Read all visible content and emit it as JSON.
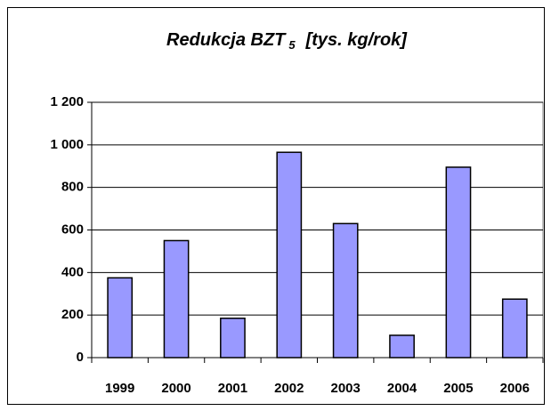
{
  "chart_data": {
    "type": "bar",
    "title": "Redukcja BZT",
    "title_subscript": "5",
    "title_suffix": "[tys. kg/rok]",
    "categories": [
      "1999",
      "2000",
      "2001",
      "2002",
      "2003",
      "2004",
      "2005",
      "2006"
    ],
    "values": [
      375,
      550,
      185,
      965,
      630,
      105,
      895,
      275
    ],
    "color": "#9999ff",
    "ylim": [
      0,
      1200
    ],
    "yticks": [
      0,
      200,
      400,
      600,
      800,
      {
        "value": 1000,
        "label": "1 000"
      },
      {
        "value": 1200,
        "label": "1 200"
      }
    ],
    "grid": true
  }
}
